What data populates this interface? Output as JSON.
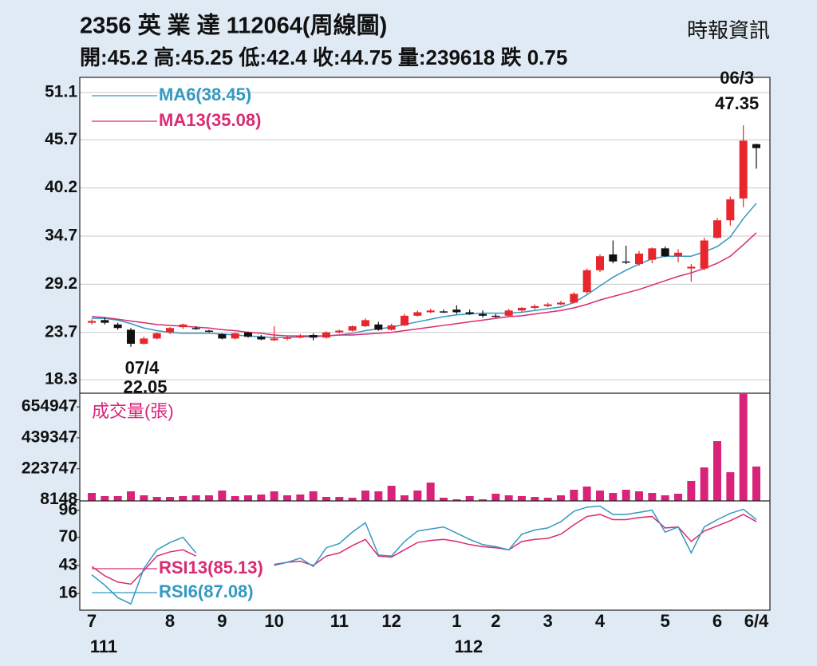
{
  "header": {
    "title": "2356 英 業 達 112064(周線圖)",
    "subtitle": "開:45.2 高:45.25 低:42.4 收:44.75 量:239618 跌 0.75",
    "source": "時報資訊"
  },
  "chart_data": [
    {
      "type": "candlestick",
      "open": [
        24.8,
        25.1,
        24.6,
        24.0,
        22.4,
        23.0,
        23.7,
        24.3,
        24.2,
        23.9,
        23.5,
        23.0,
        23.7,
        23.2,
        22.8,
        23.0,
        23.1,
        23.4,
        23.1,
        23.7,
        23.9,
        24.4,
        24.6,
        24.0,
        24.5,
        25.6,
        26.0,
        26.1,
        26.3,
        26.0,
        25.8,
        25.6,
        25.6,
        26.2,
        26.5,
        26.7,
        26.9,
        27.1,
        28.3,
        30.8,
        32.6,
        31.8,
        31.5,
        32.0,
        33.3,
        32.4,
        31.0,
        31.0,
        34.5,
        36.5,
        39.0,
        45.2
      ],
      "high": [
        25.2,
        25.4,
        24.8,
        24.2,
        23.2,
        23.7,
        24.3,
        24.7,
        24.4,
        24.0,
        23.6,
        23.7,
        23.8,
        23.4,
        24.4,
        23.3,
        23.5,
        23.6,
        23.8,
        24.0,
        24.5,
        25.3,
        24.9,
        24.7,
        25.8,
        26.2,
        26.4,
        26.3,
        26.8,
        26.3,
        26.2,
        25.8,
        26.4,
        26.6,
        26.9,
        27.1,
        27.3,
        28.3,
        31.0,
        32.6,
        34.2,
        33.6,
        33.0,
        33.4,
        33.5,
        33.2,
        31.5,
        34.5,
        36.8,
        39.2,
        47.35,
        45.25
      ],
      "low": [
        24.6,
        24.6,
        24.0,
        22.05,
        22.3,
        22.9,
        23.5,
        24.1,
        24.0,
        23.7,
        22.9,
        22.9,
        23.1,
        22.8,
        22.7,
        22.8,
        23.0,
        22.8,
        23.0,
        23.6,
        23.8,
        24.3,
        23.9,
        23.9,
        24.4,
        25.5,
        25.9,
        25.9,
        25.8,
        25.7,
        25.4,
        25.4,
        25.5,
        26.0,
        26.3,
        26.6,
        26.8,
        27.0,
        28.1,
        30.6,
        31.6,
        31.5,
        31.3,
        31.6,
        32.3,
        31.7,
        29.5,
        30.8,
        34.4,
        35.9,
        38.0,
        42.4
      ],
      "close": [
        25.0,
        24.8,
        24.2,
        22.4,
        23.0,
        23.6,
        24.2,
        24.6,
        24.1,
        23.8,
        23.0,
        23.6,
        23.2,
        22.9,
        23.0,
        23.1,
        23.3,
        23.1,
        23.7,
        23.9,
        24.4,
        25.1,
        24.0,
        24.5,
        25.6,
        26.0,
        26.2,
        26.0,
        26.0,
        25.8,
        25.6,
        25.5,
        26.2,
        26.5,
        26.7,
        26.9,
        27.1,
        28.1,
        30.8,
        32.4,
        31.8,
        31.7,
        32.7,
        33.3,
        32.4,
        32.8,
        31.2,
        34.2,
        36.5,
        38.9,
        45.6,
        44.75
      ],
      "up_color": "#e8262b",
      "down_color": "#111111",
      "date_labels": [
        null,
        null,
        null,
        "07/4",
        null,
        null,
        null,
        null,
        null,
        null,
        null,
        null,
        null,
        null,
        null,
        null,
        null,
        null,
        null,
        null,
        null,
        null,
        null,
        null,
        null,
        null,
        null,
        null,
        null,
        null,
        null,
        null,
        null,
        null,
        null,
        null,
        null,
        null,
        null,
        null,
        null,
        null,
        null,
        null,
        null,
        null,
        null,
        null,
        null,
        null,
        "06/3",
        null
      ],
      "series": [
        {
          "name": "MA6(38.45)",
          "color": "#3399c2",
          "values": [
            25.3,
            25.3,
            25.1,
            24.7,
            24.2,
            23.9,
            23.7,
            23.6,
            23.6,
            23.6,
            23.5,
            23.4,
            23.3,
            23.2,
            23.1,
            23.1,
            23.2,
            23.2,
            23.3,
            23.4,
            23.6,
            23.9,
            24.1,
            24.3,
            24.6,
            24.9,
            25.2,
            25.5,
            25.7,
            25.8,
            25.9,
            25.9,
            25.9,
            26.0,
            26.2,
            26.4,
            26.6,
            27.1,
            28.0,
            29.0,
            30.0,
            30.8,
            31.5,
            32.1,
            32.4,
            32.4,
            32.4,
            32.9,
            33.5,
            34.6,
            36.7,
            38.45
          ]
        },
        {
          "name": "MA13(35.08)",
          "color": "#d92b72",
          "values": [
            25.5,
            25.4,
            25.2,
            25.0,
            24.8,
            24.6,
            24.5,
            24.4,
            24.3,
            24.2,
            24.0,
            23.9,
            23.7,
            23.6,
            23.4,
            23.3,
            23.3,
            23.3,
            23.3,
            23.4,
            23.4,
            23.5,
            23.6,
            23.7,
            23.9,
            24.1,
            24.3,
            24.5,
            24.7,
            24.9,
            25.1,
            25.3,
            25.5,
            25.6,
            25.8,
            26.0,
            26.2,
            26.5,
            26.9,
            27.4,
            27.8,
            28.2,
            28.6,
            29.1,
            29.6,
            30.1,
            30.5,
            31.0,
            31.6,
            32.4,
            33.7,
            35.08
          ]
        }
      ],
      "ylim": [
        16.75,
        52.83
      ],
      "yticks": [
        18.3,
        23.7,
        29.2,
        34.7,
        40.2,
        45.7,
        51.1
      ],
      "grid": true
    },
    {
      "type": "bar",
      "title": "成交量(張)",
      "color": "#d9237a",
      "values": [
        55500,
        33300,
        33300,
        66600,
        38850,
        27750,
        27750,
        33300,
        38850,
        38850,
        72150,
        33300,
        38850,
        44400,
        66600,
        38850,
        44400,
        66600,
        27750,
        27750,
        22200,
        72150,
        66600,
        105450,
        38850,
        72150,
        127650,
        22200,
        11100,
        33300,
        11100,
        49950,
        38850,
        33300,
        27750,
        22200,
        38850,
        77700,
        99900,
        72150,
        55500,
        77700,
        66600,
        55500,
        38850,
        49950,
        138750,
        233100,
        416250,
        199800,
        745000,
        239618
      ],
      "ylim": [
        0,
        750000
      ],
      "yticks": [
        8148,
        223747,
        439347,
        654947
      ],
      "grid": false
    },
    {
      "type": "line",
      "categories": [
        "7",
        null,
        null,
        null,
        null,
        null,
        "8",
        null,
        null,
        null,
        "9",
        null,
        null,
        null,
        "10",
        null,
        null,
        null,
        null,
        "11",
        null,
        null,
        null,
        "12",
        null,
        null,
        null,
        null,
        "1",
        null,
        null,
        "2",
        null,
        null,
        null,
        "3",
        null,
        null,
        null,
        "4",
        null,
        null,
        null,
        null,
        "5",
        null,
        null,
        null,
        "6",
        null,
        null,
        "6/4"
      ],
      "year_labels": [
        "111",
        null,
        null,
        null,
        null,
        null,
        null,
        null,
        null,
        null,
        null,
        null,
        null,
        null,
        null,
        null,
        null,
        null,
        null,
        null,
        null,
        null,
        null,
        null,
        null,
        null,
        null,
        null,
        "112",
        null,
        null,
        null,
        null,
        null,
        null,
        null,
        null,
        null,
        null,
        null,
        null,
        null,
        null,
        null,
        null,
        null,
        null,
        null,
        null,
        null,
        null,
        null
      ],
      "series": [
        {
          "name": "RSI13(85.13)",
          "color": "#d92b72",
          "values": [
            42,
            33,
            27,
            25,
            38,
            52,
            56,
            58,
            52,
            null,
            null,
            null,
            null,
            null,
            44,
            46,
            47,
            43,
            52,
            55,
            62,
            68,
            52,
            51,
            58,
            65,
            67,
            68,
            66,
            63,
            61,
            60,
            58,
            66,
            68,
            69,
            73,
            82,
            90,
            92,
            87,
            87,
            89,
            90,
            79,
            80,
            66,
            76,
            81,
            86,
            92,
            85.13
          ]
        },
        {
          "name": "RSI6(87.08)",
          "color": "#3399c2",
          "values": [
            34,
            24,
            12,
            6,
            40,
            58,
            65,
            70,
            55,
            null,
            null,
            null,
            null,
            null,
            43,
            46,
            50,
            42,
            60,
            64,
            75,
            84,
            53,
            52,
            66,
            76,
            78,
            80,
            74,
            68,
            63,
            61,
            58,
            73,
            77,
            79,
            85,
            95,
            99,
            100,
            92,
            92,
            94,
            96,
            75,
            80,
            55,
            80,
            87,
            93,
            97,
            87.08
          ]
        }
      ],
      "ylim": [
        0,
        105
      ],
      "yticks": [
        16,
        43,
        70,
        96
      ],
      "grid": false
    }
  ]
}
